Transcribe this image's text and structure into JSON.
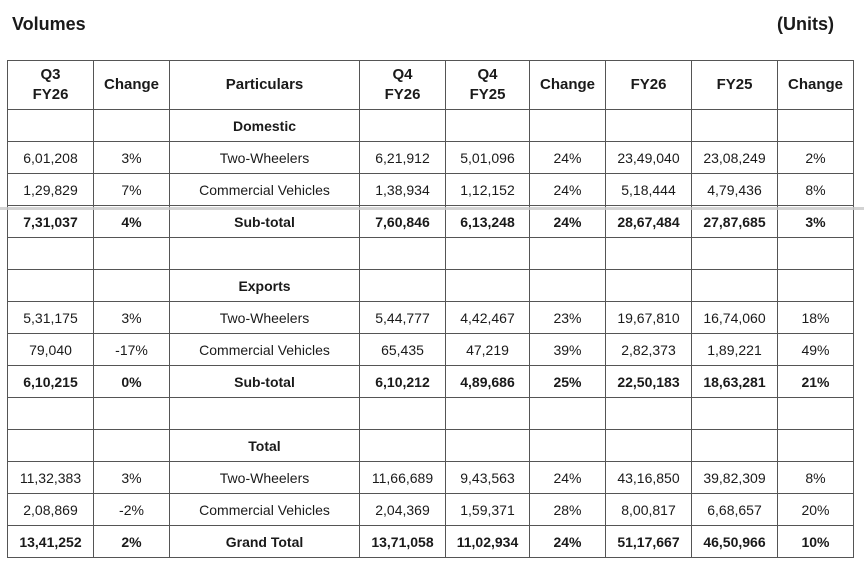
{
  "title": "Volumes",
  "units": "(Units)",
  "headers": [
    "Q3\nFY26",
    "Change",
    "Particulars",
    "Q4\nFY26",
    "Q4\nFY25",
    "Change",
    "FY26",
    "FY25",
    "Change"
  ],
  "rows": [
    {
      "type": "section",
      "label": "Domestic"
    },
    {
      "type": "data",
      "cells": [
        "6,01,208",
        "3%",
        "Two-Wheelers",
        "6,21,912",
        "5,01,096",
        "24%",
        "23,49,040",
        "23,08,249",
        "2%"
      ]
    },
    {
      "type": "data",
      "cells": [
        "1,29,829",
        "7%",
        "Commercial Vehicles",
        "1,38,934",
        "1,12,152",
        "24%",
        "5,18,444",
        "4,79,436",
        "8%"
      ]
    },
    {
      "type": "total",
      "cells": [
        "7,31,037",
        "4%",
        "Sub-total",
        "7,60,846",
        "6,13,248",
        "24%",
        "28,67,484",
        "27,87,685",
        "3%"
      ]
    },
    {
      "type": "blank"
    },
    {
      "type": "section",
      "label": "Exports"
    },
    {
      "type": "data",
      "cells": [
        "5,31,175",
        "3%",
        "Two-Wheelers",
        "5,44,777",
        "4,42,467",
        "23%",
        "19,67,810",
        "16,74,060",
        "18%"
      ]
    },
    {
      "type": "data",
      "cells": [
        "79,040",
        "-17%",
        "Commercial Vehicles",
        "65,435",
        "47,219",
        "39%",
        "2,82,373",
        "1,89,221",
        "49%"
      ]
    },
    {
      "type": "total",
      "cells": [
        "6,10,215",
        "0%",
        "Sub-total",
        "6,10,212",
        "4,89,686",
        "25%",
        "22,50,183",
        "18,63,281",
        "21%"
      ]
    },
    {
      "type": "blank"
    },
    {
      "type": "section",
      "label": "Total"
    },
    {
      "type": "data",
      "cells": [
        "11,32,383",
        "3%",
        "Two-Wheelers",
        "11,66,689",
        "9,43,563",
        "24%",
        "43,16,850",
        "39,82,309",
        "8%"
      ]
    },
    {
      "type": "data",
      "cells": [
        "2,08,869",
        "-2%",
        "Commercial Vehicles",
        "2,04,369",
        "1,59,371",
        "28%",
        "8,00,817",
        "6,68,657",
        "20%"
      ]
    },
    {
      "type": "total",
      "cells": [
        "13,41,252",
        "2%",
        "Grand Total",
        "13,71,058",
        "11,02,934",
        "24%",
        "51,17,667",
        "46,50,966",
        "10%"
      ]
    }
  ]
}
